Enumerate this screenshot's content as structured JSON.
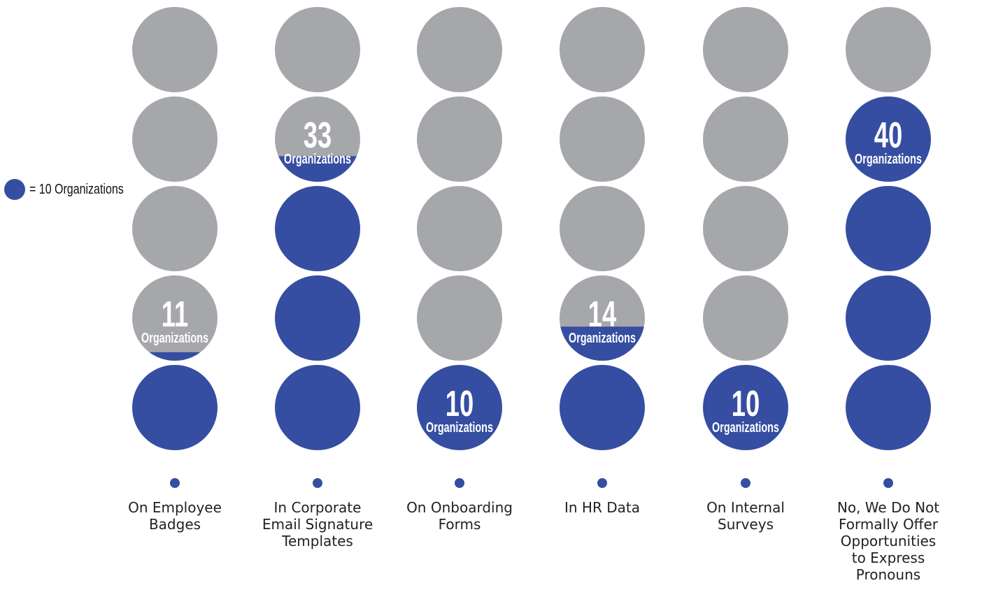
{
  "chart_data": {
    "type": "pictograph",
    "unit_value": 10,
    "max_units": 5,
    "legend": {
      "label": "= 10 Organizations"
    },
    "unit_word": "Organizations",
    "categories": [
      "On Employee Badges",
      "In Corporate Email Signature Templates",
      "On Onboarding Forms",
      "In HR Data",
      "On Internal Surveys",
      "No, We Do Not Formally Offer Opportunities to Express Pronouns"
    ],
    "values": [
      11,
      33,
      10,
      14,
      10,
      40
    ]
  },
  "colors": {
    "filled": "#354ea1",
    "empty": "#a6a7ab",
    "baseline": "#3a3a3a",
    "text": "#222222"
  },
  "display_labels": [
    "On Employee\nBadges",
    "In Corporate\nEmail Signature\nTemplates",
    "On Onboarding\nForms",
    "In HR Data",
    "On Internal\nSurveys",
    "No, We Do Not\nFormally Offer\nOpportunities\nto Express\nPronouns"
  ]
}
